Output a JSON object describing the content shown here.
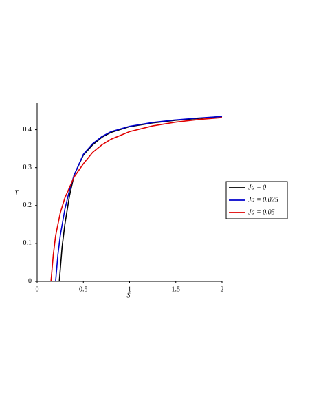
{
  "chart_data": {
    "type": "line",
    "xlabel": "S",
    "ylabel": "T",
    "xlim": [
      0,
      2
    ],
    "ylim": [
      0,
      0.47
    ],
    "xticks": [
      0,
      0.5,
      1,
      1.5,
      2
    ],
    "yticks": [
      0,
      0.1,
      0.2,
      0.3,
      0.4
    ],
    "grid": false,
    "legend": "right",
    "series": [
      {
        "name": "Ja = 0",
        "color": "#000000",
        "x": [
          0.24,
          0.27,
          0.3,
          0.35,
          0.4,
          0.5,
          0.6,
          0.7,
          0.8,
          1.0,
          1.25,
          1.5,
          1.75,
          2.0
        ],
        "values": [
          0,
          0.09,
          0.15,
          0.225,
          0.28,
          0.333,
          0.36,
          0.38,
          0.393,
          0.408,
          0.418,
          0.425,
          0.43,
          0.435
        ]
      },
      {
        "name": "Ja = 0.025",
        "color": "#0000cc",
        "x": [
          0.2,
          0.225,
          0.25,
          0.3,
          0.35,
          0.4,
          0.5,
          0.6,
          0.7,
          0.8,
          1.0,
          1.25,
          1.5,
          1.75,
          2.0
        ],
        "values": [
          0,
          0.07,
          0.12,
          0.19,
          0.24,
          0.28,
          0.335,
          0.363,
          0.382,
          0.395,
          0.409,
          0.419,
          0.426,
          0.431,
          0.435
        ]
      },
      {
        "name": "Ja = 0.05",
        "color": "#e00000",
        "x": [
          0.15,
          0.175,
          0.2,
          0.25,
          0.3,
          0.4,
          0.5,
          0.6,
          0.7,
          0.8,
          1.0,
          1.25,
          1.5,
          1.75,
          2.0
        ],
        "values": [
          0,
          0.07,
          0.12,
          0.18,
          0.22,
          0.275,
          0.31,
          0.34,
          0.36,
          0.375,
          0.395,
          0.41,
          0.42,
          0.427,
          0.432
        ]
      }
    ]
  }
}
